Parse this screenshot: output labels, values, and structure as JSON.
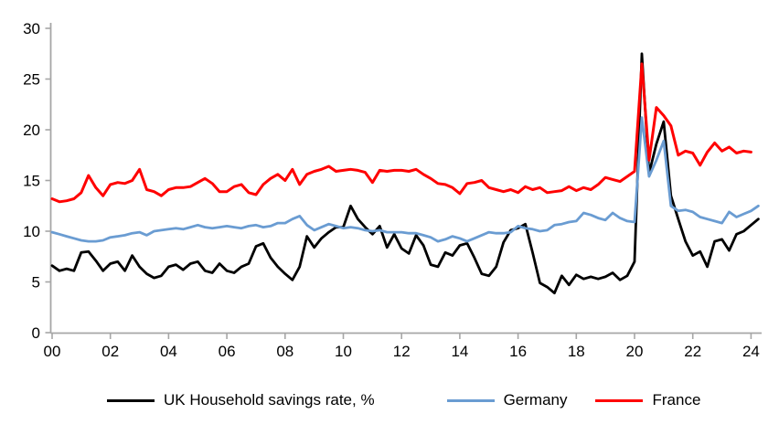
{
  "chart_data": {
    "type": "line",
    "frequency": "quarterly",
    "x_start": "2000Q1",
    "x_end": "2024Q2",
    "x_tick_labels": [
      "00",
      "02",
      "04",
      "06",
      "08",
      "10",
      "12",
      "14",
      "16",
      "18",
      "20",
      "22",
      "24"
    ],
    "ylim": [
      0,
      30
    ],
    "y_tick_step": 5,
    "y_tick_labels": [
      "0",
      "5",
      "10",
      "15",
      "20",
      "25",
      "30"
    ],
    "grid": false,
    "legend_position": "bottom",
    "axis_color": "#A6A6A6",
    "series": [
      {
        "name": "UK Household savings rate, %",
        "color": "#000000",
        "width": 2.8,
        "values": [
          6.6,
          6.1,
          6.3,
          6.1,
          7.9,
          8.0,
          7.1,
          6.1,
          6.8,
          7.0,
          6.1,
          7.6,
          6.5,
          5.8,
          5.4,
          5.6,
          6.5,
          6.7,
          6.2,
          6.8,
          7.0,
          6.1,
          5.9,
          6.8,
          6.1,
          5.9,
          6.5,
          6.8,
          8.5,
          8.8,
          7.4,
          6.5,
          5.8,
          5.2,
          6.5,
          9.5,
          8.4,
          9.3,
          9.9,
          10.4,
          10.4,
          12.5,
          11.2,
          10.4,
          9.7,
          10.5,
          8.4,
          9.7,
          8.3,
          7.8,
          9.6,
          8.6,
          6.7,
          6.5,
          7.9,
          7.6,
          8.6,
          8.8,
          7.4,
          5.8,
          5.6,
          6.5,
          8.9,
          10.1,
          10.3,
          10.7,
          7.9,
          4.9,
          4.5,
          3.9,
          5.6,
          4.7,
          5.7,
          5.3,
          5.5,
          5.3,
          5.5,
          5.9,
          5.2,
          5.6,
          7.0,
          27.5,
          15.7,
          18.6,
          20.8,
          13.5,
          11.2,
          9.0,
          7.6,
          8.0,
          6.5,
          9.0,
          9.2,
          8.1,
          9.7,
          10.0,
          10.6,
          11.2
        ]
      },
      {
        "name": "Germany",
        "color": "#6A9CD2",
        "width": 2.8,
        "values": [
          9.9,
          9.7,
          9.5,
          9.3,
          9.1,
          9.0,
          9.0,
          9.1,
          9.4,
          9.5,
          9.6,
          9.8,
          9.9,
          9.6,
          10.0,
          10.1,
          10.2,
          10.3,
          10.2,
          10.4,
          10.6,
          10.4,
          10.3,
          10.4,
          10.5,
          10.4,
          10.3,
          10.5,
          10.6,
          10.4,
          10.5,
          10.8,
          10.8,
          11.2,
          11.5,
          10.6,
          10.1,
          10.4,
          10.7,
          10.5,
          10.3,
          10.4,
          10.3,
          10.1,
          10.0,
          10.1,
          9.9,
          9.9,
          9.9,
          9.8,
          9.8,
          9.6,
          9.4,
          9.0,
          9.2,
          9.5,
          9.3,
          9.0,
          9.3,
          9.6,
          9.9,
          9.8,
          9.8,
          9.9,
          10.5,
          10.3,
          10.2,
          10.0,
          10.1,
          10.6,
          10.7,
          10.9,
          11.0,
          11.8,
          11.6,
          11.3,
          11.1,
          11.8,
          11.3,
          11.0,
          10.9,
          21.2,
          15.4,
          17.0,
          18.9,
          12.5,
          12.0,
          12.1,
          11.9,
          11.4,
          11.2,
          11.0,
          10.8,
          11.9,
          11.4,
          11.7,
          12.0,
          12.5
        ]
      },
      {
        "name": "France",
        "color": "#FF0000",
        "width": 3.0,
        "values": [
          13.2,
          12.9,
          13.0,
          13.2,
          13.8,
          15.5,
          14.3,
          13.5,
          14.6,
          14.8,
          14.7,
          15.0,
          16.1,
          14.1,
          13.9,
          13.5,
          14.1,
          14.3,
          14.3,
          14.4,
          14.8,
          15.2,
          14.7,
          13.9,
          13.9,
          14.4,
          14.6,
          13.8,
          13.6,
          14.6,
          15.2,
          15.6,
          15.0,
          16.1,
          14.6,
          15.6,
          15.9,
          16.1,
          16.4,
          15.9,
          16.0,
          16.1,
          16.0,
          15.8,
          14.8,
          16.0,
          15.9,
          16.0,
          16.0,
          15.9,
          16.1,
          15.6,
          15.2,
          14.7,
          14.6,
          14.3,
          13.7,
          14.7,
          14.8,
          15.0,
          14.3,
          14.1,
          13.9,
          14.1,
          13.8,
          14.4,
          14.1,
          14.3,
          13.8,
          13.9,
          14.0,
          14.4,
          14.0,
          14.3,
          14.1,
          14.6,
          15.3,
          15.1,
          14.9,
          15.4,
          15.9,
          26.5,
          17.0,
          22.2,
          21.4,
          20.4,
          17.5,
          17.9,
          17.7,
          16.5,
          17.8,
          18.7,
          17.9,
          18.3,
          17.7,
          17.9,
          17.8,
          null
        ]
      }
    ]
  },
  "legend": {
    "items": [
      {
        "label": "UK Household savings rate, %",
        "color": "#000000"
      },
      {
        "label": "Germany",
        "color": "#6A9CD2"
      },
      {
        "label": "France",
        "color": "#FF0000"
      }
    ]
  }
}
